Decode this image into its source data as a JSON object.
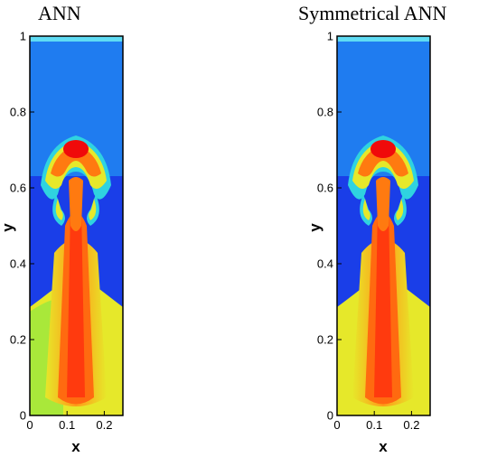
{
  "chart_data": [
    {
      "type": "heatmap",
      "title": "ANN",
      "xlabel": "x",
      "ylabel": "y",
      "xlim": [
        0,
        0.25
      ],
      "ylim": [
        0,
        1
      ],
      "x_ticks": [
        "0",
        "0.1",
        "0.2"
      ],
      "y_ticks": [
        "0",
        "0.2",
        "0.4",
        "0.6",
        "0.8",
        "1"
      ],
      "colors": {
        "low": "#1a3ee8",
        "mid_low": "#1f7cf0",
        "mid": "#2fd3e0",
        "mid_high": "#e6e82a",
        "high": "#ff7a10",
        "peak": "#f00a0a"
      }
    },
    {
      "type": "heatmap",
      "title": "Symmetrical ANN",
      "xlabel": "x",
      "ylabel": "y",
      "xlim": [
        0,
        0.25
      ],
      "ylim": [
        0,
        1
      ],
      "x_ticks": [
        "0",
        "0.1",
        "0.2"
      ],
      "y_ticks": [
        "0",
        "0.2",
        "0.4",
        "0.6",
        "0.8",
        "1"
      ],
      "colors": {
        "low": "#1a3ee8",
        "mid_low": "#1f7cf0",
        "mid": "#2fd3e0",
        "mid_high": "#e6e82a",
        "high": "#ff7a10",
        "peak": "#f00a0a"
      }
    }
  ]
}
